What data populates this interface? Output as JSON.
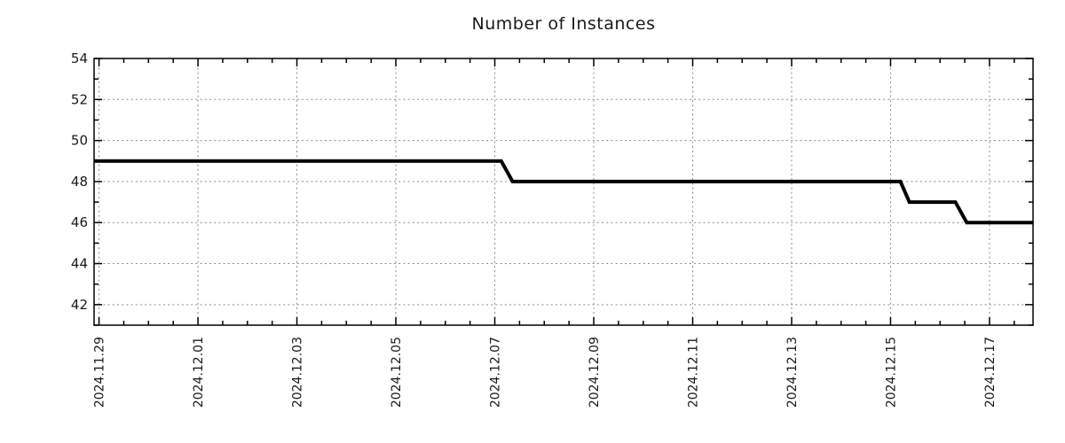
{
  "chart_data": {
    "type": "line",
    "title": "Number of Instances",
    "legend": "none",
    "grid": {
      "show": true,
      "color": "#8c8c8c",
      "style": "dotted"
    },
    "frame_color": "#000000",
    "background_color": "#ffffff",
    "series": [
      {
        "name": "instances",
        "color": "#000000",
        "shape": "step-line",
        "points_day_value": [
          [
            -0.1,
            49
          ],
          [
            8.13,
            49
          ],
          [
            8.36,
            48
          ],
          [
            16.2,
            48
          ],
          [
            16.38,
            47
          ],
          [
            17.31,
            47
          ],
          [
            17.54,
            46
          ],
          [
            18.88,
            46
          ]
        ]
      }
    ],
    "x_axis": {
      "tick_labels": [
        "2024.11.29",
        "2024.12.01",
        "2024.12.03",
        "2024.12.05",
        "2024.12.07",
        "2024.12.09",
        "2024.12.11",
        "2024.12.13",
        "2024.12.15",
        "2024.12.17"
      ],
      "tick_days": [
        0,
        2,
        4,
        6,
        8,
        10,
        12,
        14,
        16,
        18
      ],
      "minor_step_days": 0.5,
      "range_days": [
        -0.1,
        18.88
      ],
      "label_rotation_deg": 90
    },
    "y_axis": {
      "tick_labels": [
        "42",
        "44",
        "46",
        "48",
        "50",
        "52",
        "54"
      ],
      "tick_values": [
        42,
        44,
        46,
        48,
        50,
        52,
        54
      ],
      "minor_step": 1,
      "range": [
        41,
        54
      ]
    }
  }
}
